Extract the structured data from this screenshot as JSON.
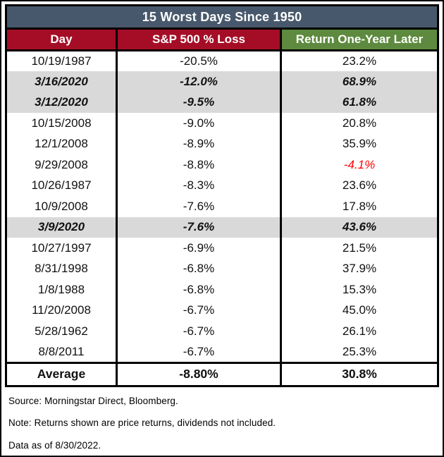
{
  "chart_data": {
    "type": "table",
    "title": "15 Worst Days Since 1950",
    "columns": [
      {
        "label": "Day",
        "header_color": "#A50D26"
      },
      {
        "label": "S&P 500 % Loss",
        "header_color": "#A50D26"
      },
      {
        "label": "Return One-Year Later",
        "header_color": "#5D8A3E"
      }
    ],
    "rows": [
      {
        "day": "10/19/1987",
        "loss": "-20.5%",
        "ret": "23.2%",
        "highlight": false,
        "ret_negative": false
      },
      {
        "day": "3/16/2020",
        "loss": "-12.0%",
        "ret": "68.9%",
        "highlight": true,
        "ret_negative": false
      },
      {
        "day": "3/12/2020",
        "loss": "-9.5%",
        "ret": "61.8%",
        "highlight": true,
        "ret_negative": false
      },
      {
        "day": "10/15/2008",
        "loss": "-9.0%",
        "ret": "20.8%",
        "highlight": false,
        "ret_negative": false
      },
      {
        "day": "12/1/2008",
        "loss": "-8.9%",
        "ret": "35.9%",
        "highlight": false,
        "ret_negative": false
      },
      {
        "day": "9/29/2008",
        "loss": "-8.8%",
        "ret": "-4.1%",
        "highlight": false,
        "ret_negative": true
      },
      {
        "day": "10/26/1987",
        "loss": "-8.3%",
        "ret": "23.6%",
        "highlight": false,
        "ret_negative": false
      },
      {
        "day": "10/9/2008",
        "loss": "-7.6%",
        "ret": "17.8%",
        "highlight": false,
        "ret_negative": false
      },
      {
        "day": "3/9/2020",
        "loss": "-7.6%",
        "ret": "43.6%",
        "highlight": true,
        "ret_negative": false
      },
      {
        "day": "10/27/1997",
        "loss": "-6.9%",
        "ret": "21.5%",
        "highlight": false,
        "ret_negative": false
      },
      {
        "day": "8/31/1998",
        "loss": "-6.8%",
        "ret": "37.9%",
        "highlight": false,
        "ret_negative": false
      },
      {
        "day": "1/8/1988",
        "loss": "-6.8%",
        "ret": "15.3%",
        "highlight": false,
        "ret_negative": false
      },
      {
        "day": "11/20/2008",
        "loss": "-6.7%",
        "ret": "45.0%",
        "highlight": false,
        "ret_negative": false
      },
      {
        "day": "5/28/1962",
        "loss": "-6.7%",
        "ret": "26.1%",
        "highlight": false,
        "ret_negative": false
      },
      {
        "day": "8/8/2011",
        "loss": "-6.7%",
        "ret": "25.3%",
        "highlight": false,
        "ret_negative": false
      }
    ],
    "summary": {
      "label": "Average",
      "loss": "-8.80%",
      "ret": "30.8%"
    }
  },
  "footnotes": [
    "Source: Morningstar Direct, Bloomberg.",
    "Note: Returns shown are price returns, dividends not included.",
    "Data as of 8/30/2022."
  ],
  "colors": {
    "title_bar": "#48586C",
    "header_red": "#A50D26",
    "header_green": "#5D8A3E",
    "highlight_row": "#D9D9D9",
    "negative_return": "#FF0000"
  }
}
